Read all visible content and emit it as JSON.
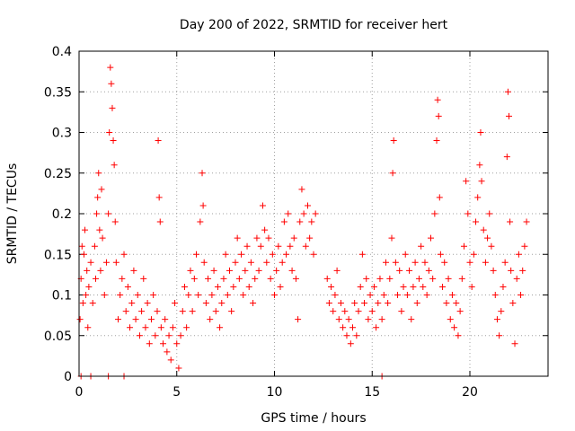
{
  "chart_data": {
    "type": "scatter",
    "title": "Day 200 of 2022, SRMTID for receiver hert",
    "xlabel": "GPS time / hours",
    "ylabel": "SRMTID / TECUs",
    "xlim": [
      0,
      24
    ],
    "ylim": [
      0,
      0.4
    ],
    "xticks": [
      "0",
      "5",
      "10",
      "15",
      "20"
    ],
    "xtick_values": [
      0,
      5,
      10,
      15,
      20
    ],
    "yticks": [
      "0",
      "0.05",
      "0.1",
      "0.15",
      "0.2",
      "0.25",
      "0.3",
      "0.35",
      "0.4"
    ],
    "ytick_values": [
      0,
      0.05,
      0.1,
      0.15,
      0.2,
      0.25,
      0.3,
      0.35,
      0.4
    ],
    "grid": true,
    "marker": "plus",
    "color": "#ff0000",
    "series": [
      {
        "values": [
          [
            0.05,
            0.07
          ],
          [
            0.1,
            0.12
          ],
          [
            0.15,
            0.16
          ],
          [
            0.2,
            0.09
          ],
          [
            0.25,
            0.15
          ],
          [
            0.3,
            0.18
          ],
          [
            0.35,
            0.1
          ],
          [
            0.4,
            0.13
          ],
          [
            0.45,
            0.06
          ],
          [
            0.5,
            0.11
          ],
          [
            0.6,
            0.14
          ],
          [
            0.7,
            0.09
          ],
          [
            0.8,
            0.16
          ],
          [
            0.85,
            0.12
          ],
          [
            0.9,
            0.2
          ],
          [
            0.95,
            0.22
          ],
          [
            1.0,
            0.25
          ],
          [
            1.05,
            0.18
          ],
          [
            1.1,
            0.13
          ],
          [
            1.15,
            0.23
          ],
          [
            1.2,
            0.17
          ],
          [
            1.3,
            0.1
          ],
          [
            1.4,
            0.14
          ],
          [
            1.5,
            0.2
          ],
          [
            1.55,
            0.3
          ],
          [
            1.6,
            0.38
          ],
          [
            1.65,
            0.36
          ],
          [
            1.7,
            0.33
          ],
          [
            1.75,
            0.29
          ],
          [
            1.8,
            0.26
          ],
          [
            1.85,
            0.19
          ],
          [
            1.9,
            0.14
          ],
          [
            2.0,
            0.07
          ],
          [
            2.1,
            0.1
          ],
          [
            2.2,
            0.12
          ],
          [
            2.3,
            0.15
          ],
          [
            2.4,
            0.08
          ],
          [
            2.5,
            0.11
          ],
          [
            2.6,
            0.06
          ],
          [
            2.7,
            0.09
          ],
          [
            2.8,
            0.13
          ],
          [
            2.9,
            0.07
          ],
          [
            3.0,
            0.1
          ],
          [
            3.1,
            0.05
          ],
          [
            3.2,
            0.08
          ],
          [
            3.3,
            0.12
          ],
          [
            3.4,
            0.06
          ],
          [
            3.5,
            0.09
          ],
          [
            3.6,
            0.04
          ],
          [
            3.7,
            0.07
          ],
          [
            3.8,
            0.1
          ],
          [
            3.9,
            0.05
          ],
          [
            4.0,
            0.08
          ],
          [
            4.05,
            0.29
          ],
          [
            4.1,
            0.22
          ],
          [
            4.15,
            0.19
          ],
          [
            4.2,
            0.06
          ],
          [
            4.3,
            0.04
          ],
          [
            4.4,
            0.07
          ],
          [
            4.5,
            0.03
          ],
          [
            4.6,
            0.05
          ],
          [
            4.7,
            0.02
          ],
          [
            4.8,
            0.06
          ],
          [
            4.9,
            0.09
          ],
          [
            5.0,
            0.04
          ],
          [
            5.1,
            0.01
          ],
          [
            5.2,
            0.05
          ],
          [
            5.3,
            0.08
          ],
          [
            5.4,
            0.11
          ],
          [
            5.5,
            0.06
          ],
          [
            5.6,
            0.1
          ],
          [
            5.7,
            0.13
          ],
          [
            5.8,
            0.08
          ],
          [
            5.9,
            0.12
          ],
          [
            6.0,
            0.15
          ],
          [
            6.1,
            0.1
          ],
          [
            6.2,
            0.19
          ],
          [
            6.3,
            0.25
          ],
          [
            6.35,
            0.21
          ],
          [
            6.4,
            0.14
          ],
          [
            6.5,
            0.09
          ],
          [
            6.6,
            0.12
          ],
          [
            6.7,
            0.07
          ],
          [
            6.8,
            0.1
          ],
          [
            6.9,
            0.13
          ],
          [
            7.0,
            0.08
          ],
          [
            7.1,
            0.11
          ],
          [
            7.2,
            0.06
          ],
          [
            7.3,
            0.09
          ],
          [
            7.4,
            0.12
          ],
          [
            7.5,
            0.15
          ],
          [
            7.6,
            0.1
          ],
          [
            7.7,
            0.13
          ],
          [
            7.8,
            0.08
          ],
          [
            7.9,
            0.11
          ],
          [
            8.0,
            0.14
          ],
          [
            8.1,
            0.17
          ],
          [
            8.2,
            0.12
          ],
          [
            8.3,
            0.15
          ],
          [
            8.4,
            0.1
          ],
          [
            8.5,
            0.13
          ],
          [
            8.6,
            0.16
          ],
          [
            8.7,
            0.11
          ],
          [
            8.8,
            0.14
          ],
          [
            8.9,
            0.09
          ],
          [
            9.0,
            0.12
          ],
          [
            9.1,
            0.17
          ],
          [
            9.2,
            0.13
          ],
          [
            9.3,
            0.16
          ],
          [
            9.4,
            0.21
          ],
          [
            9.5,
            0.18
          ],
          [
            9.6,
            0.14
          ],
          [
            9.7,
            0.17
          ],
          [
            9.8,
            0.12
          ],
          [
            9.9,
            0.15
          ],
          [
            10.0,
            0.1
          ],
          [
            10.1,
            0.13
          ],
          [
            10.2,
            0.16
          ],
          [
            10.3,
            0.11
          ],
          [
            10.4,
            0.14
          ],
          [
            10.5,
            0.19
          ],
          [
            10.6,
            0.15
          ],
          [
            10.7,
            0.2
          ],
          [
            10.8,
            0.16
          ],
          [
            10.9,
            0.13
          ],
          [
            11.0,
            0.17
          ],
          [
            11.1,
            0.12
          ],
          [
            11.2,
            0.07
          ],
          [
            11.3,
            0.19
          ],
          [
            11.4,
            0.23
          ],
          [
            11.5,
            0.2
          ],
          [
            11.6,
            0.16
          ],
          [
            11.7,
            0.21
          ],
          [
            11.8,
            0.17
          ],
          [
            11.9,
            0.19
          ],
          [
            12.0,
            0.15
          ],
          [
            12.1,
            0.2
          ],
          [
            12.7,
            0.12
          ],
          [
            12.8,
            0.09
          ],
          [
            12.9,
            0.11
          ],
          [
            13.0,
            0.08
          ],
          [
            13.1,
            0.1
          ],
          [
            13.2,
            0.13
          ],
          [
            13.3,
            0.07
          ],
          [
            13.4,
            0.09
          ],
          [
            13.5,
            0.06
          ],
          [
            13.6,
            0.08
          ],
          [
            13.7,
            0.05
          ],
          [
            13.8,
            0.07
          ],
          [
            13.9,
            0.04
          ],
          [
            14.0,
            0.06
          ],
          [
            14.1,
            0.09
          ],
          [
            14.2,
            0.05
          ],
          [
            14.3,
            0.08
          ],
          [
            14.4,
            0.11
          ],
          [
            14.5,
            0.15
          ],
          [
            14.6,
            0.09
          ],
          [
            14.7,
            0.12
          ],
          [
            14.8,
            0.07
          ],
          [
            14.9,
            0.1
          ],
          [
            15.0,
            0.08
          ],
          [
            15.1,
            0.11
          ],
          [
            15.2,
            0.06
          ],
          [
            15.3,
            0.09
          ],
          [
            15.4,
            0.12
          ],
          [
            15.5,
            0.07
          ],
          [
            15.6,
            0.1
          ],
          [
            15.7,
            0.14
          ],
          [
            15.8,
            0.09
          ],
          [
            15.9,
            0.12
          ],
          [
            16.0,
            0.17
          ],
          [
            16.05,
            0.25
          ],
          [
            16.1,
            0.29
          ],
          [
            16.2,
            0.14
          ],
          [
            16.3,
            0.1
          ],
          [
            16.4,
            0.13
          ],
          [
            16.5,
            0.08
          ],
          [
            16.6,
            0.11
          ],
          [
            16.7,
            0.15
          ],
          [
            16.8,
            0.1
          ],
          [
            16.9,
            0.13
          ],
          [
            17.0,
            0.07
          ],
          [
            17.1,
            0.11
          ],
          [
            17.2,
            0.14
          ],
          [
            17.3,
            0.09
          ],
          [
            17.4,
            0.12
          ],
          [
            17.5,
            0.16
          ],
          [
            17.6,
            0.11
          ],
          [
            17.7,
            0.14
          ],
          [
            17.8,
            0.1
          ],
          [
            17.9,
            0.13
          ],
          [
            18.0,
            0.17
          ],
          [
            18.1,
            0.12
          ],
          [
            18.2,
            0.2
          ],
          [
            18.3,
            0.29
          ],
          [
            18.35,
            0.34
          ],
          [
            18.4,
            0.32
          ],
          [
            18.45,
            0.22
          ],
          [
            18.5,
            0.15
          ],
          [
            18.6,
            0.11
          ],
          [
            18.7,
            0.14
          ],
          [
            18.8,
            0.09
          ],
          [
            18.9,
            0.12
          ],
          [
            19.0,
            0.07
          ],
          [
            19.1,
            0.1
          ],
          [
            19.2,
            0.06
          ],
          [
            19.3,
            0.09
          ],
          [
            19.4,
            0.05
          ],
          [
            19.5,
            0.08
          ],
          [
            19.6,
            0.12
          ],
          [
            19.7,
            0.16
          ],
          [
            19.8,
            0.24
          ],
          [
            19.9,
            0.2
          ],
          [
            20.0,
            0.14
          ],
          [
            20.1,
            0.11
          ],
          [
            20.2,
            0.15
          ],
          [
            20.3,
            0.19
          ],
          [
            20.4,
            0.22
          ],
          [
            20.5,
            0.26
          ],
          [
            20.55,
            0.3
          ],
          [
            20.6,
            0.24
          ],
          [
            20.7,
            0.18
          ],
          [
            20.8,
            0.14
          ],
          [
            20.9,
            0.17
          ],
          [
            21.0,
            0.2
          ],
          [
            21.1,
            0.16
          ],
          [
            21.2,
            0.13
          ],
          [
            21.3,
            0.1
          ],
          [
            21.4,
            0.07
          ],
          [
            21.5,
            0.05
          ],
          [
            21.6,
            0.08
          ],
          [
            21.7,
            0.11
          ],
          [
            21.8,
            0.14
          ],
          [
            21.9,
            0.27
          ],
          [
            21.95,
            0.35
          ],
          [
            22.0,
            0.32
          ],
          [
            22.05,
            0.19
          ],
          [
            22.1,
            0.13
          ],
          [
            22.2,
            0.09
          ],
          [
            22.3,
            0.04
          ],
          [
            22.4,
            0.12
          ],
          [
            22.5,
            0.15
          ],
          [
            22.6,
            0.1
          ],
          [
            22.7,
            0.13
          ],
          [
            22.8,
            0.16
          ],
          [
            22.9,
            0.19
          ],
          [
            0.1,
            0.0
          ],
          [
            0.6,
            0.0
          ],
          [
            1.5,
            0.0
          ],
          [
            2.3,
            0.0
          ],
          [
            15.5,
            0.0
          ]
        ]
      }
    ]
  }
}
